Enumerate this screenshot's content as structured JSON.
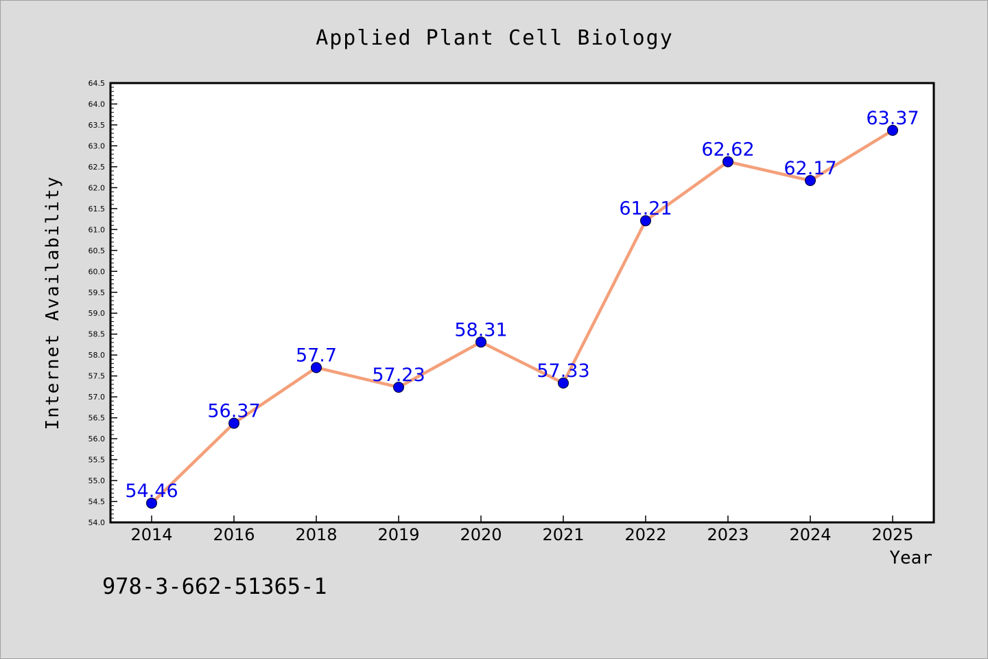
{
  "chart_data": {
    "type": "line",
    "title": "Applied Plant Cell Biology",
    "xlabel": "Year",
    "ylabel": "Internet Availability",
    "categories": [
      "2014",
      "2016",
      "2018",
      "2019",
      "2020",
      "2021",
      "2022",
      "2023",
      "2024",
      "2025"
    ],
    "series": [
      {
        "values": [
          54.46,
          56.37,
          57.7,
          57.23,
          58.31,
          57.33,
          61.21,
          62.62,
          62.17,
          63.37
        ],
        "data_labels": [
          "54.46",
          "56.37",
          "57.7",
          "57.23",
          "58.31",
          "57.33",
          "61.21",
          "62.62",
          "62.17",
          "63.37"
        ],
        "line_color": "#f4a07a",
        "marker_color": "#0000ee"
      }
    ],
    "ylim": [
      54.0,
      64.5
    ],
    "ytick_labels": [
      "54.0",
      "54.5",
      "55.0",
      "55.5",
      "56.0",
      "56.5",
      "57.0",
      "57.5",
      "58.0",
      "58.5",
      "59.0",
      "59.5",
      "60.0",
      "60.5",
      "61.0",
      "61.5",
      "62.0",
      "62.5",
      "63.0",
      "63.5",
      "64.0",
      "64.5"
    ],
    "grid": false,
    "legend": "none",
    "annotation_color": "#0000ee"
  },
  "footer": {
    "isbn": "978-3-662-51365-1"
  }
}
